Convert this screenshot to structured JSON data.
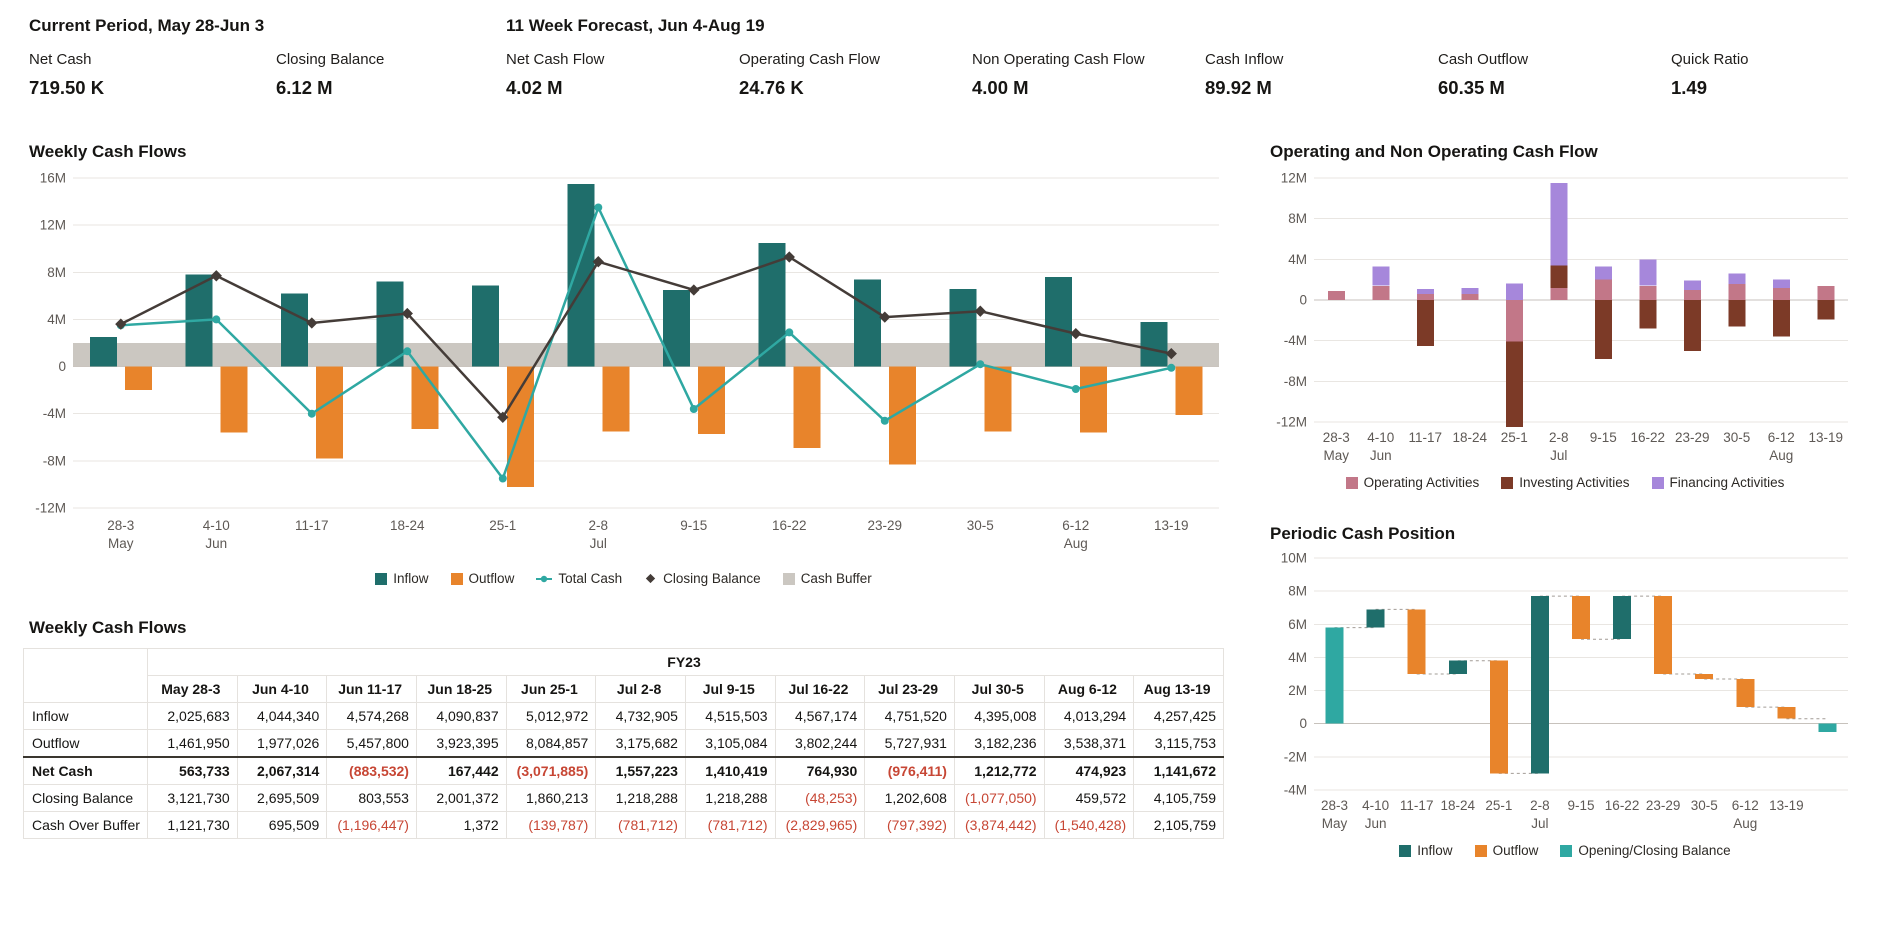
{
  "kpis": {
    "current_period": {
      "title": "Current Period, May 28-Jun 3",
      "items": [
        {
          "label": "Net Cash",
          "value": "719.50 K"
        },
        {
          "label": "Closing Balance",
          "value": "6.12 M"
        }
      ]
    },
    "forecast": {
      "title": "11 Week Forecast, Jun 4-Aug 19",
      "items": [
        {
          "label": "Net Cash Flow",
          "value": "4.02 M"
        },
        {
          "label": "Operating Cash Flow",
          "value": "24.76 K"
        },
        {
          "label": "Non Operating Cash Flow",
          "value": "4.00 M"
        },
        {
          "label": "Cash Inflow",
          "value": "89.92 M"
        },
        {
          "label": "Cash Outflow",
          "value": "60.35 M"
        },
        {
          "label": "Quick Ratio",
          "value": "1.49"
        }
      ]
    }
  },
  "colors": {
    "inflow": "#1F6E6B",
    "outflow": "#E8842B",
    "total_cash": "#2FA8A2",
    "closing_balance": "#443C38",
    "cash_buffer": "#CBC7C1",
    "operating": "#C27788",
    "investing": "#7C3A27",
    "financing": "#A687DB",
    "balance": "#2FA8A2",
    "negative_text": "#C74634",
    "grid": "#E9E6E2",
    "zero_line": "#C7C2BC"
  },
  "chart_data": [
    {
      "id": "weekly",
      "type": "bar",
      "variant": "grouped-bars-with-lines",
      "title": "Weekly Cash Flows",
      "unit": "M",
      "ylim": [
        -12,
        16
      ],
      "yticks": [
        16,
        12,
        8,
        4,
        0,
        -4,
        -8,
        -12
      ],
      "categories": [
        "28-3",
        "4-10",
        "11-17",
        "18-24",
        "25-1",
        "2-8",
        "9-15",
        "16-22",
        "23-29",
        "30-5",
        "6-12",
        "13-19"
      ],
      "month_labels": [
        "May",
        "Jun",
        "",
        "",
        "",
        "Jul",
        "",
        "",
        "",
        "",
        "Aug",
        ""
      ],
      "cash_buffer_band": [
        0,
        2
      ],
      "buffer_label": "Cash Buffer",
      "series": [
        {
          "name": "Inflow",
          "type": "bar",
          "color": "#1F6E6B",
          "values": [
            2.5,
            7.8,
            6.2,
            7.2,
            6.9,
            15.5,
            6.5,
            10.5,
            7.4,
            6.6,
            7.6,
            3.8
          ]
        },
        {
          "name": "Outflow",
          "type": "bar",
          "color": "#E8842B",
          "values": [
            -2.0,
            -5.6,
            -7.8,
            -5.3,
            -10.2,
            -5.5,
            -5.7,
            -6.9,
            -8.3,
            -5.5,
            -5.6,
            -4.1
          ]
        },
        {
          "name": "Total Cash",
          "type": "line",
          "marker": "circle",
          "color": "#2FA8A2",
          "values": [
            3.5,
            4.0,
            -4.0,
            1.3,
            -9.5,
            13.5,
            -3.6,
            2.9,
            -4.6,
            0.2,
            -1.9,
            -0.1
          ]
        },
        {
          "name": "Closing Balance",
          "type": "line",
          "marker": "diamond",
          "color": "#443C38",
          "values": [
            3.6,
            7.7,
            3.7,
            4.5,
            -4.3,
            8.9,
            6.5,
            9.3,
            4.2,
            4.7,
            2.8,
            1.1
          ]
        }
      ]
    },
    {
      "id": "operating",
      "type": "bar",
      "variant": "stacked",
      "title": "Operating and Non Operating Cash Flow",
      "unit": "M",
      "ylim": [
        -12,
        12
      ],
      "yticks": [
        12,
        8,
        4,
        0,
        -4,
        -8,
        -12
      ],
      "categories": [
        "28-3",
        "4-10",
        "11-17",
        "18-24",
        "25-1",
        "2-8",
        "9-15",
        "16-22",
        "23-29",
        "30-5",
        "6-12",
        "13-19"
      ],
      "month_labels": [
        "May",
        "Jun",
        "",
        "",
        "",
        "Jul",
        "",
        "",
        "",
        "",
        "Aug",
        ""
      ],
      "series": [
        {
          "name": "Operating Activities",
          "color": "#C27788",
          "values": [
            0.9,
            1.4,
            0.6,
            0.6,
            -4.1,
            1.2,
            2.0,
            1.4,
            1.0,
            1.6,
            1.2,
            1.4
          ]
        },
        {
          "name": "Investing Activities",
          "color": "#7C3A27",
          "values": [
            0,
            0,
            -4.5,
            0,
            -8.4,
            2.2,
            -5.8,
            -2.8,
            -5.0,
            -2.6,
            -3.6,
            -1.9
          ]
        },
        {
          "name": "Financing Activities",
          "color": "#A687DB",
          "values": [
            0,
            1.9,
            0.5,
            0.6,
            1.6,
            8.1,
            1.3,
            2.6,
            0.9,
            1.0,
            0.8,
            0
          ]
        }
      ]
    },
    {
      "id": "periodic",
      "type": "bar",
      "variant": "waterfall",
      "title": "Periodic Cash Position",
      "unit": "M",
      "ylim": [
        -4,
        10
      ],
      "yticks": [
        10,
        8,
        6,
        4,
        2,
        0,
        -2,
        -4
      ],
      "legend": [
        "Inflow",
        "Outflow",
        "Opening/Closing Balance"
      ],
      "series_colors": {
        "Inflow": "#1F6E6B",
        "Outflow": "#E8842B",
        "Opening/Closing Balance": "#2FA8A2"
      },
      "bars": [
        {
          "label": "28-3",
          "month": "May",
          "series": "Opening/Closing Balance",
          "start": 0,
          "end": 5.8
        },
        {
          "label": "4-10",
          "month": "Jun",
          "series": "Inflow",
          "start": 5.8,
          "end": 6.9
        },
        {
          "label": "11-17",
          "month": "",
          "series": "Outflow",
          "start": 6.9,
          "end": 3.0
        },
        {
          "label": "18-24",
          "month": "",
          "series": "Inflow",
          "start": 3.0,
          "end": 3.8
        },
        {
          "label": "25-1",
          "month": "",
          "series": "Outflow",
          "start": 3.8,
          "end": -3.0
        },
        {
          "label": "2-8",
          "month": "Jul",
          "series": "Inflow",
          "start": -3.0,
          "end": 7.7
        },
        {
          "label": "9-15",
          "month": "",
          "series": "Outflow",
          "start": 7.7,
          "end": 5.1
        },
        {
          "label": "16-22",
          "month": "",
          "series": "Inflow",
          "start": 5.1,
          "end": 7.7
        },
        {
          "label": "23-29",
          "month": "",
          "series": "Outflow",
          "start": 7.7,
          "end": 3.0
        },
        {
          "label": "30-5",
          "month": "",
          "series": "Outflow",
          "start": 3.0,
          "end": 2.7
        },
        {
          "label": "6-12",
          "month": "Aug",
          "series": "Outflow",
          "start": 2.7,
          "end": 1.0
        },
        {
          "label": "13-19",
          "month": "",
          "series": "Outflow",
          "start": 1.0,
          "end": 0.3
        },
        {
          "label": "",
          "month": "",
          "series": "Opening/Closing Balance",
          "start": 0,
          "end": -0.5
        }
      ]
    },
    {
      "id": "weekly-table",
      "type": "table",
      "title": "Weekly Cash Flows",
      "group_header": "FY23",
      "columns": [
        "May 28-3",
        "Jun 4-10",
        "Jun 11-17",
        "Jun 18-25",
        "Jun 25-1",
        "Jul 2-8",
        "Jul 9-15",
        "Jul 16-22",
        "Jul 23-29",
        "Jul 30-5",
        "Aug 6-12",
        "Aug 13-19"
      ],
      "rows": [
        {
          "label": "Inflow",
          "emphasis": false,
          "values": [
            "2,025,683",
            "4,044,340",
            "4,574,268",
            "4,090,837",
            "5,012,972",
            "4,732,905",
            "4,515,503",
            "4,567,174",
            "4,751,520",
            "4,395,008",
            "4,013,294",
            "4,257,425"
          ]
        },
        {
          "label": "Outflow",
          "emphasis": false,
          "values": [
            "1,461,950",
            "1,977,026",
            "5,457,800",
            "3,923,395",
            "8,084,857",
            "3,175,682",
            "3,105,084",
            "3,802,244",
            "5,727,931",
            "3,182,236",
            "3,538,371",
            "3,115,753"
          ]
        },
        {
          "label": "Net Cash",
          "emphasis": true,
          "values": [
            "563,733",
            "2,067,314",
            "(883,532)",
            "167,442",
            "(3,071,885)",
            "1,557,223",
            "1,410,419",
            "764,930",
            "(976,411)",
            "1,212,772",
            "474,923",
            "1,141,672"
          ]
        },
        {
          "label": "Closing Balance",
          "emphasis": false,
          "values": [
            "3,121,730",
            "2,695,509",
            "803,553",
            "2,001,372",
            "1,860,213",
            "1,218,288",
            "1,218,288",
            "(48,253)",
            "1,202,608",
            "(1,077,050)",
            "459,572",
            "4,105,759"
          ]
        },
        {
          "label": "Cash Over Buffer",
          "emphasis": false,
          "values": [
            "1,121,730",
            "695,509",
            "(1,196,447)",
            "1,372",
            "(139,787)",
            "(781,712)",
            "(781,712)",
            "(2,829,965)",
            "(797,392)",
            "(3,874,442)",
            "(1,540,428)",
            "2,105,759"
          ]
        }
      ]
    }
  ]
}
